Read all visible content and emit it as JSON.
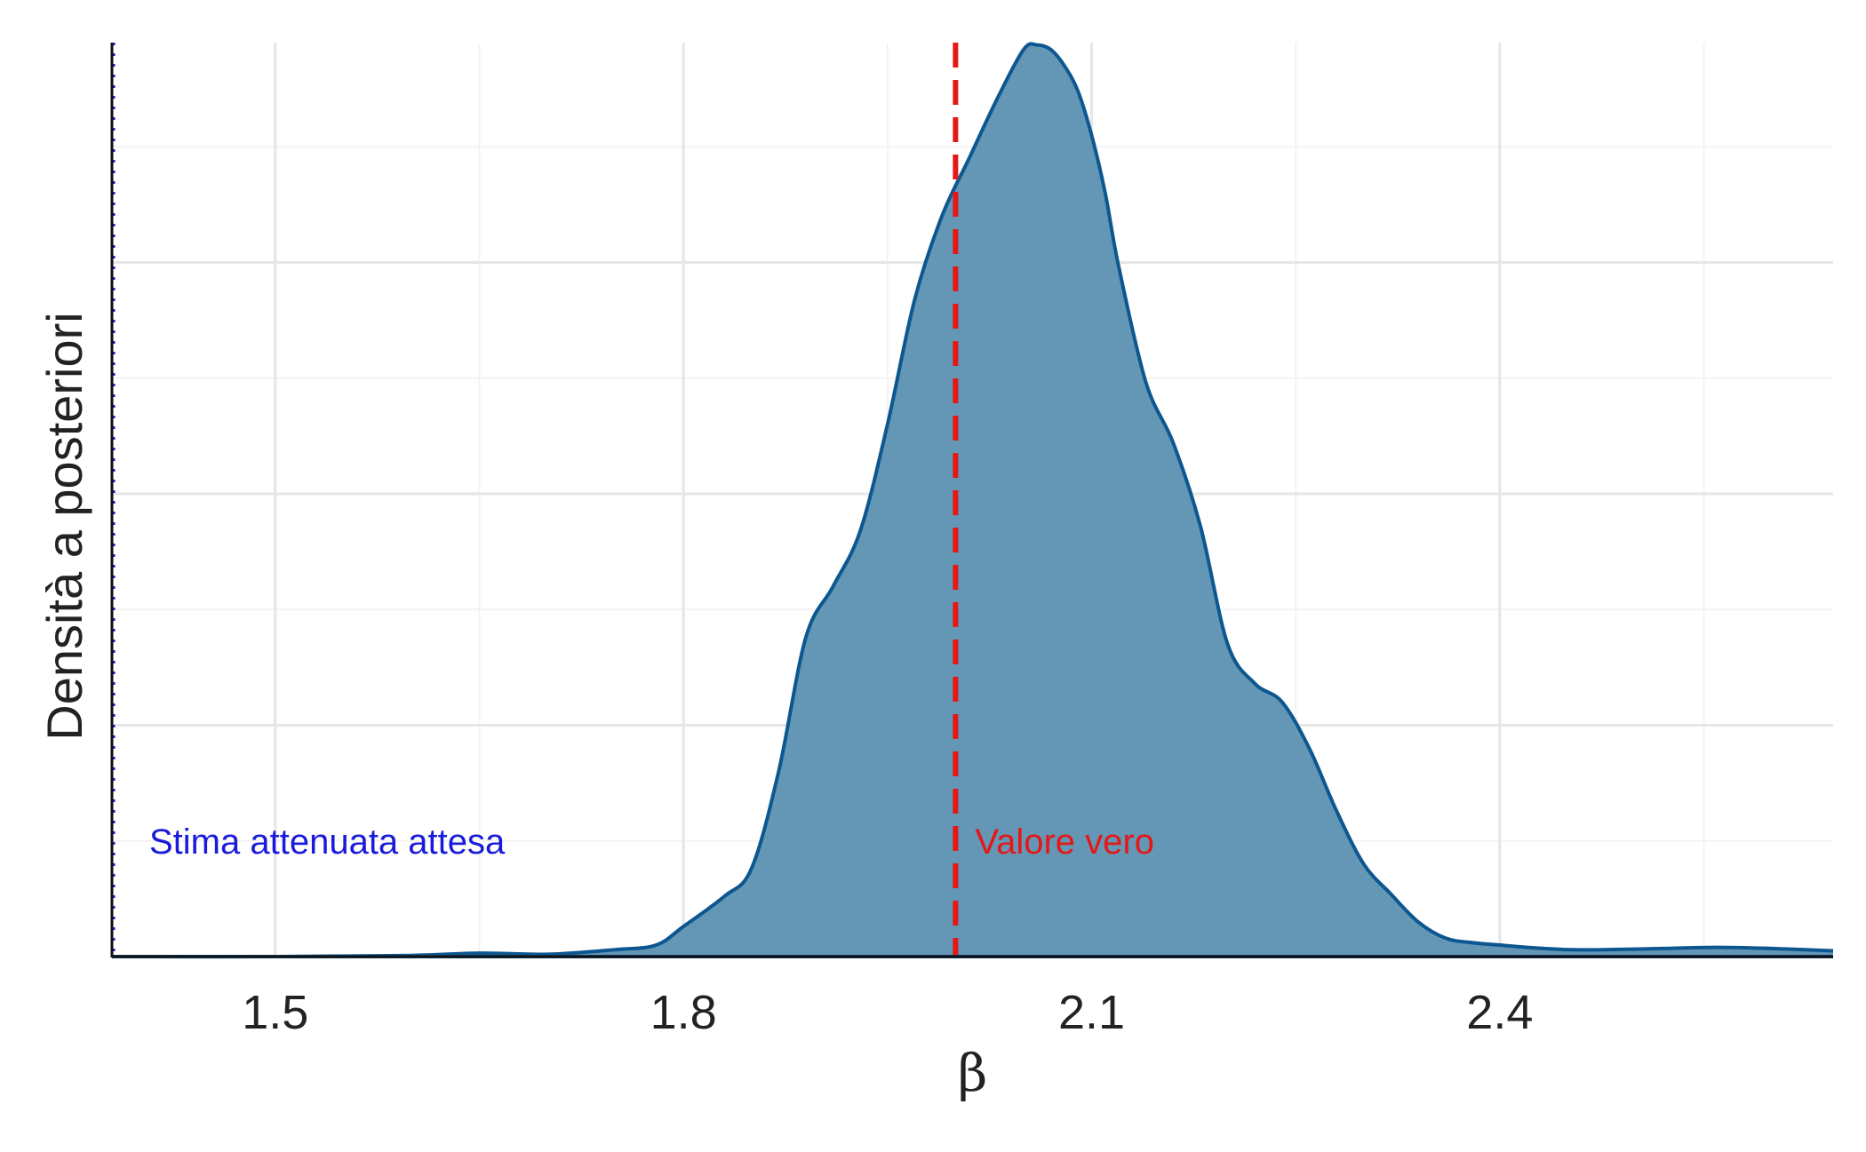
{
  "chart_data": {
    "type": "area",
    "title": "",
    "xlabel": "β",
    "ylabel": "Densità a posteriori",
    "xlim": [
      1.38,
      2.645
    ],
    "ylim": [
      0,
      3.95
    ],
    "x_ticks": [
      1.5,
      1.8,
      2.1,
      2.4
    ],
    "x_tick_labels": [
      "1.5",
      "1.8",
      "2.1",
      "2.4"
    ],
    "y_ticks": [
      1,
      2,
      3
    ],
    "y_minor": [
      0.5,
      1.5,
      2.5,
      3.5
    ],
    "x_minor": [
      1.65,
      1.95,
      2.25,
      2.55
    ],
    "grid": true,
    "legend": "none",
    "series": [
      {
        "fill": "#6497b5",
        "stroke": "#0d5791",
        "x": [
          1.38,
          1.5,
          1.6,
          1.65,
          1.7,
          1.75,
          1.78,
          1.8,
          1.83,
          1.85,
          1.87,
          1.89,
          1.91,
          1.93,
          1.95,
          1.97,
          1.99,
          2.01,
          2.03,
          2.05,
          2.06,
          2.07,
          2.08,
          2.09,
          2.1,
          2.11,
          2.12,
          2.14,
          2.16,
          2.18,
          2.2,
          2.22,
          2.24,
          2.26,
          2.28,
          2.3,
          2.32,
          2.34,
          2.36,
          2.38,
          2.4,
          2.42,
          2.45,
          2.48,
          2.52,
          2.56,
          2.6,
          2.645
        ],
        "y": [
          0.0,
          0.0,
          0.005,
          0.015,
          0.01,
          0.03,
          0.05,
          0.13,
          0.26,
          0.38,
          0.8,
          1.38,
          1.6,
          1.84,
          2.3,
          2.84,
          3.2,
          3.45,
          3.7,
          3.92,
          3.94,
          3.92,
          3.85,
          3.74,
          3.55,
          3.3,
          2.98,
          2.48,
          2.22,
          1.86,
          1.35,
          1.18,
          1.1,
          0.9,
          0.63,
          0.4,
          0.27,
          0.15,
          0.08,
          0.06,
          0.05,
          0.04,
          0.03,
          0.03,
          0.035,
          0.04,
          0.035,
          0.025
        ]
      }
    ],
    "vlines": [
      {
        "x": 2.0,
        "color": "#e51717",
        "style": "dashed",
        "label": "Valore vero"
      },
      {
        "x": 1.38,
        "color": "#1a1adb",
        "style": "dotted",
        "label": "Stima attenuata attesa"
      }
    ]
  },
  "annotations": {
    "true_value": "Valore vero",
    "attenuated": "Stima attenuata attesa",
    "true_color": "#e51717",
    "attenuated_color": "#1a1adb"
  }
}
